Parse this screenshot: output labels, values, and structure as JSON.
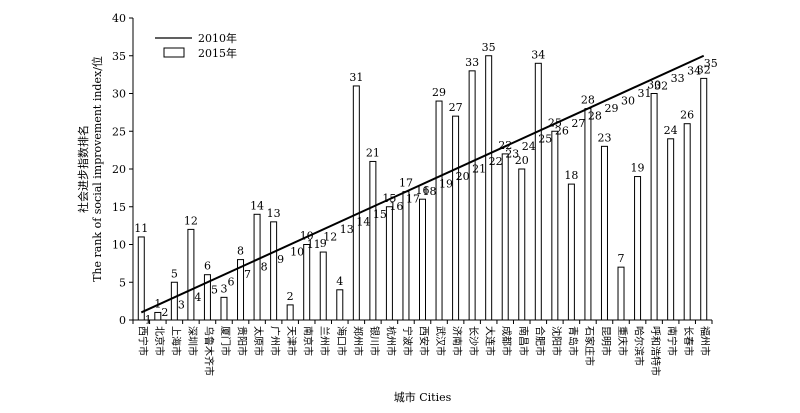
{
  "chart_data": {
    "type": "bar",
    "xlabel": "城市 Cities",
    "ylabel_cn": "社会进步指数排名",
    "ylabel_en": "The rank of social improvement index/位",
    "ylim": [
      0,
      40
    ],
    "yticks": [
      0,
      5,
      10,
      15,
      20,
      25,
      30,
      35,
      40
    ],
    "legend": {
      "placement": "top-left",
      "line_label": "2010年",
      "bar_label": "2015年"
    },
    "categories": [
      "西宁市",
      "北京市",
      "上海市",
      "深圳市",
      "乌鲁木齐市",
      "厦门市",
      "贵阳市",
      "太原市",
      "广州市",
      "天津市",
      "南京市",
      "兰州市",
      "海口市",
      "郑州市",
      "银川市",
      "杭州市",
      "宁波市",
      "西安市",
      "武汉市",
      "济南市",
      "长沙市",
      "大连市",
      "成都市",
      "南昌市",
      "合肥市",
      "沈阳市",
      "青岛市",
      "石家庄市",
      "昆明市",
      "重庆市",
      "哈尔滨市",
      "呼和浩特市",
      "南宁市",
      "长春市",
      "福州市"
    ],
    "series": [
      {
        "name": "2015年",
        "kind": "bar",
        "values": [
          11,
          1,
          5,
          12,
          6,
          3,
          8,
          14,
          13,
          2,
          10,
          9,
          4,
          31,
          21,
          15,
          17,
          16,
          29,
          27,
          33,
          35,
          22,
          20,
          34,
          25,
          18,
          28,
          23,
          7,
          19,
          30,
          24,
          26,
          32
        ]
      },
      {
        "name": "2010年",
        "kind": "line",
        "values": [
          1,
          2,
          3,
          4,
          5,
          6,
          7,
          8,
          9,
          10,
          11,
          12,
          13,
          14,
          15,
          16,
          17,
          18,
          19,
          20,
          21,
          22,
          23,
          24,
          25,
          26,
          27,
          28,
          29,
          30,
          31,
          32,
          33,
          34,
          35
        ]
      }
    ]
  }
}
